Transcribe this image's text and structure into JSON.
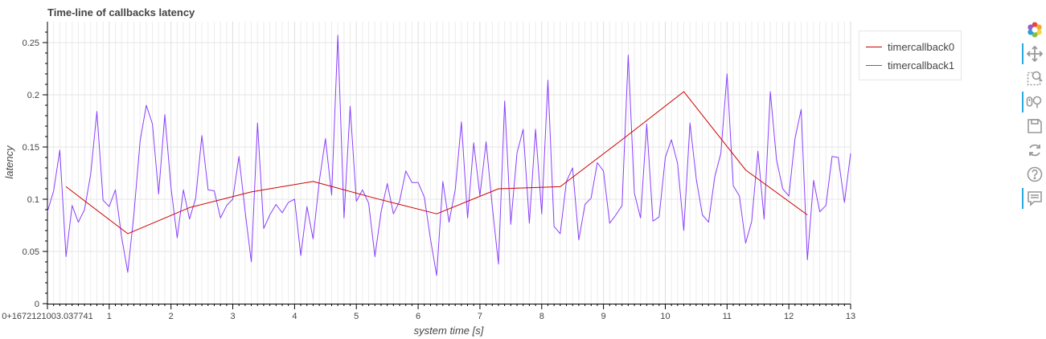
{
  "chart_data": {
    "type": "line",
    "title": "Time-line of callbacks latency",
    "xlabel": "system time [s]",
    "ylabel": "latency",
    "x_origin_label": "0+1672121003.037741",
    "xlim": [
      0,
      13
    ],
    "ylim": [
      0,
      0.27
    ],
    "x_ticks": [
      1,
      2,
      3,
      4,
      5,
      6,
      7,
      8,
      9,
      10,
      11,
      12,
      13
    ],
    "x_tick_labels": [
      "1",
      "2",
      "3",
      "4",
      "5",
      "6",
      "7",
      "8",
      "9",
      "10",
      "11",
      "12",
      "13"
    ],
    "y_ticks": [
      0,
      0.05,
      0.1,
      0.15,
      0.2,
      0.25
    ],
    "y_tick_labels": [
      "0",
      "0.05",
      "0.1",
      "0.15",
      "0.2",
      "0.25"
    ],
    "grid": true,
    "legend_position": "top-right, outside plot",
    "series": [
      {
        "name": "timercallback0",
        "color": "#cc0000",
        "x": [
          0.3,
          1.3,
          2.3,
          3.3,
          4.3,
          5.3,
          6.3,
          7.3,
          8.3,
          9.3,
          10.3,
          11.3,
          12.3
        ],
        "y": [
          0.112,
          0.067,
          0.092,
          0.107,
          0.117,
          0.101,
          0.086,
          0.11,
          0.112,
          0.157,
          0.203,
          0.128,
          0.085
        ]
      },
      {
        "name": "timercallback1",
        "color": "#8a3ffc",
        "x": [
          0.0,
          0.1,
          0.2,
          0.3,
          0.4,
          0.5,
          0.6,
          0.7,
          0.8,
          0.9,
          1.0,
          1.1,
          1.2,
          1.3,
          1.4,
          1.5,
          1.6,
          1.7,
          1.8,
          1.9,
          2.0,
          2.1,
          2.2,
          2.3,
          2.4,
          2.5,
          2.6,
          2.7,
          2.8,
          2.9,
          3.0,
          3.1,
          3.2,
          3.3,
          3.4,
          3.5,
          3.6,
          3.7,
          3.8,
          3.9,
          4.0,
          4.1,
          4.2,
          4.3,
          4.4,
          4.5,
          4.6,
          4.7,
          4.8,
          4.9,
          5.0,
          5.1,
          5.2,
          5.3,
          5.4,
          5.5,
          5.6,
          5.7,
          5.8,
          5.9,
          6.0,
          6.1,
          6.2,
          6.3,
          6.4,
          6.5,
          6.6,
          6.7,
          6.8,
          6.9,
          7.0,
          7.1,
          7.2,
          7.3,
          7.4,
          7.5,
          7.6,
          7.7,
          7.8,
          7.9,
          8.0,
          8.1,
          8.2,
          8.3,
          8.4,
          8.5,
          8.6,
          8.7,
          8.8,
          8.9,
          9.0,
          9.1,
          9.2,
          9.3,
          9.4,
          9.5,
          9.6,
          9.7,
          9.8,
          9.9,
          10.0,
          10.1,
          10.2,
          10.3,
          10.4,
          10.5,
          10.6,
          10.7,
          10.8,
          10.9,
          11.0,
          11.1,
          11.2,
          11.3,
          11.4,
          11.5,
          11.6,
          11.7,
          11.8,
          11.9,
          12.0,
          12.1,
          12.2,
          12.3,
          12.4,
          12.5,
          12.6,
          12.7,
          12.8,
          12.9,
          13.0
        ],
        "y": [
          0.088,
          0.108,
          0.147,
          0.045,
          0.094,
          0.078,
          0.09,
          0.124,
          0.184,
          0.099,
          0.093,
          0.109,
          0.064,
          0.03,
          0.086,
          0.156,
          0.19,
          0.172,
          0.105,
          0.181,
          0.111,
          0.063,
          0.109,
          0.081,
          0.101,
          0.161,
          0.109,
          0.108,
          0.082,
          0.094,
          0.1,
          0.141,
          0.088,
          0.04,
          0.173,
          0.072,
          0.085,
          0.095,
          0.087,
          0.097,
          0.1,
          0.046,
          0.093,
          0.062,
          0.117,
          0.158,
          0.104,
          0.257,
          0.082,
          0.189,
          0.098,
          0.109,
          0.096,
          0.045,
          0.088,
          0.115,
          0.086,
          0.098,
          0.127,
          0.116,
          0.116,
          0.102,
          0.062,
          0.027,
          0.117,
          0.078,
          0.109,
          0.174,
          0.082,
          0.154,
          0.103,
          0.155,
          0.093,
          0.038,
          0.194,
          0.076,
          0.144,
          0.167,
          0.077,
          0.167,
          0.086,
          0.214,
          0.074,
          0.067,
          0.117,
          0.13,
          0.061,
          0.095,
          0.101,
          0.135,
          0.127,
          0.077,
          0.085,
          0.094,
          0.238,
          0.106,
          0.082,
          0.172,
          0.079,
          0.083,
          0.14,
          0.157,
          0.134,
          0.07,
          0.173,
          0.12,
          0.085,
          0.078,
          0.121,
          0.144,
          0.22,
          0.113,
          0.103,
          0.058,
          0.079,
          0.146,
          0.081,
          0.203,
          0.138,
          0.11,
          0.103,
          0.158,
          0.186,
          0.042,
          0.118,
          0.088,
          0.094,
          0.141,
          0.14,
          0.097,
          0.144
        ]
      }
    ]
  },
  "legend": {
    "items": [
      {
        "label": "timercallback0",
        "color": "#cc0000"
      },
      {
        "label": "timercallback1",
        "color": "#8a3ffc"
      }
    ]
  },
  "toolbar": {
    "tools": [
      {
        "name": "bokeh-logo",
        "icon": "bokeh-logo-icon",
        "active": false
      },
      {
        "name": "pan",
        "icon": "pan-icon",
        "active": true
      },
      {
        "name": "box-zoom",
        "icon": "box-zoom-icon",
        "active": false
      },
      {
        "name": "wheel-zoom",
        "icon": "wheel-zoom-icon",
        "active": true
      },
      {
        "name": "save",
        "icon": "save-icon",
        "active": false
      },
      {
        "name": "reset",
        "icon": "reset-icon",
        "active": false
      },
      {
        "name": "help",
        "icon": "help-icon",
        "active": false
      },
      {
        "name": "hover",
        "icon": "hover-icon",
        "active": true
      }
    ]
  }
}
